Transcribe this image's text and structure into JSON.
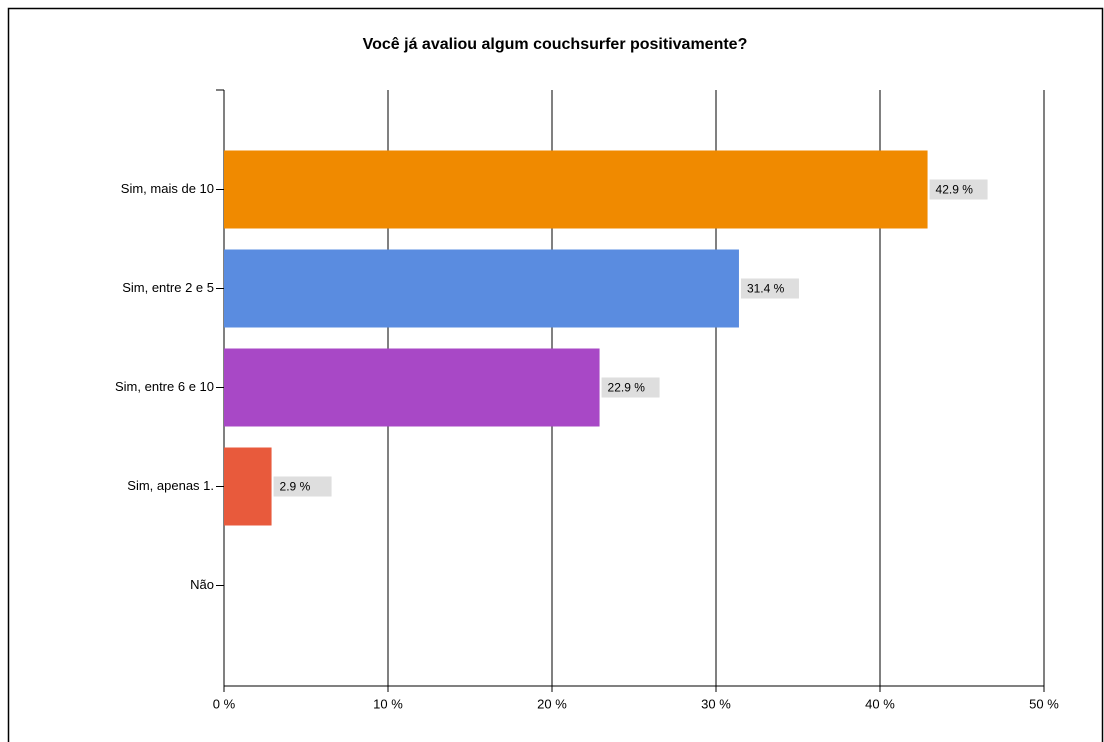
{
  "chart_data": {
    "type": "barh",
    "title": "Você já avaliou algum couchsurfer positivamente?",
    "categories": [
      "Sim, mais de 10",
      "Sim, entre 2 e 5",
      "Sim, entre 6 e 10",
      "Sim, apenas 1.",
      "Não"
    ],
    "values": [
      42.9,
      31.4,
      22.9,
      2.9,
      0
    ],
    "value_labels": [
      "42.9 %",
      "31.4 %",
      "22.9 %",
      "2.9 %",
      null
    ],
    "colors": [
      "#f08a00",
      "#5a8ce0",
      "#a848c6",
      "#e85a3c",
      "#999999"
    ],
    "xlim": [
      0,
      50
    ],
    "xticks": [
      {
        "value": 0,
        "label": "0 %"
      },
      {
        "value": 10,
        "label": "10 %"
      },
      {
        "value": 20,
        "label": "20 %"
      },
      {
        "value": 30,
        "label": "30 %"
      },
      {
        "value": 40,
        "label": "40 %"
      },
      {
        "value": 50,
        "label": "50 %"
      }
    ],
    "grid": true
  }
}
